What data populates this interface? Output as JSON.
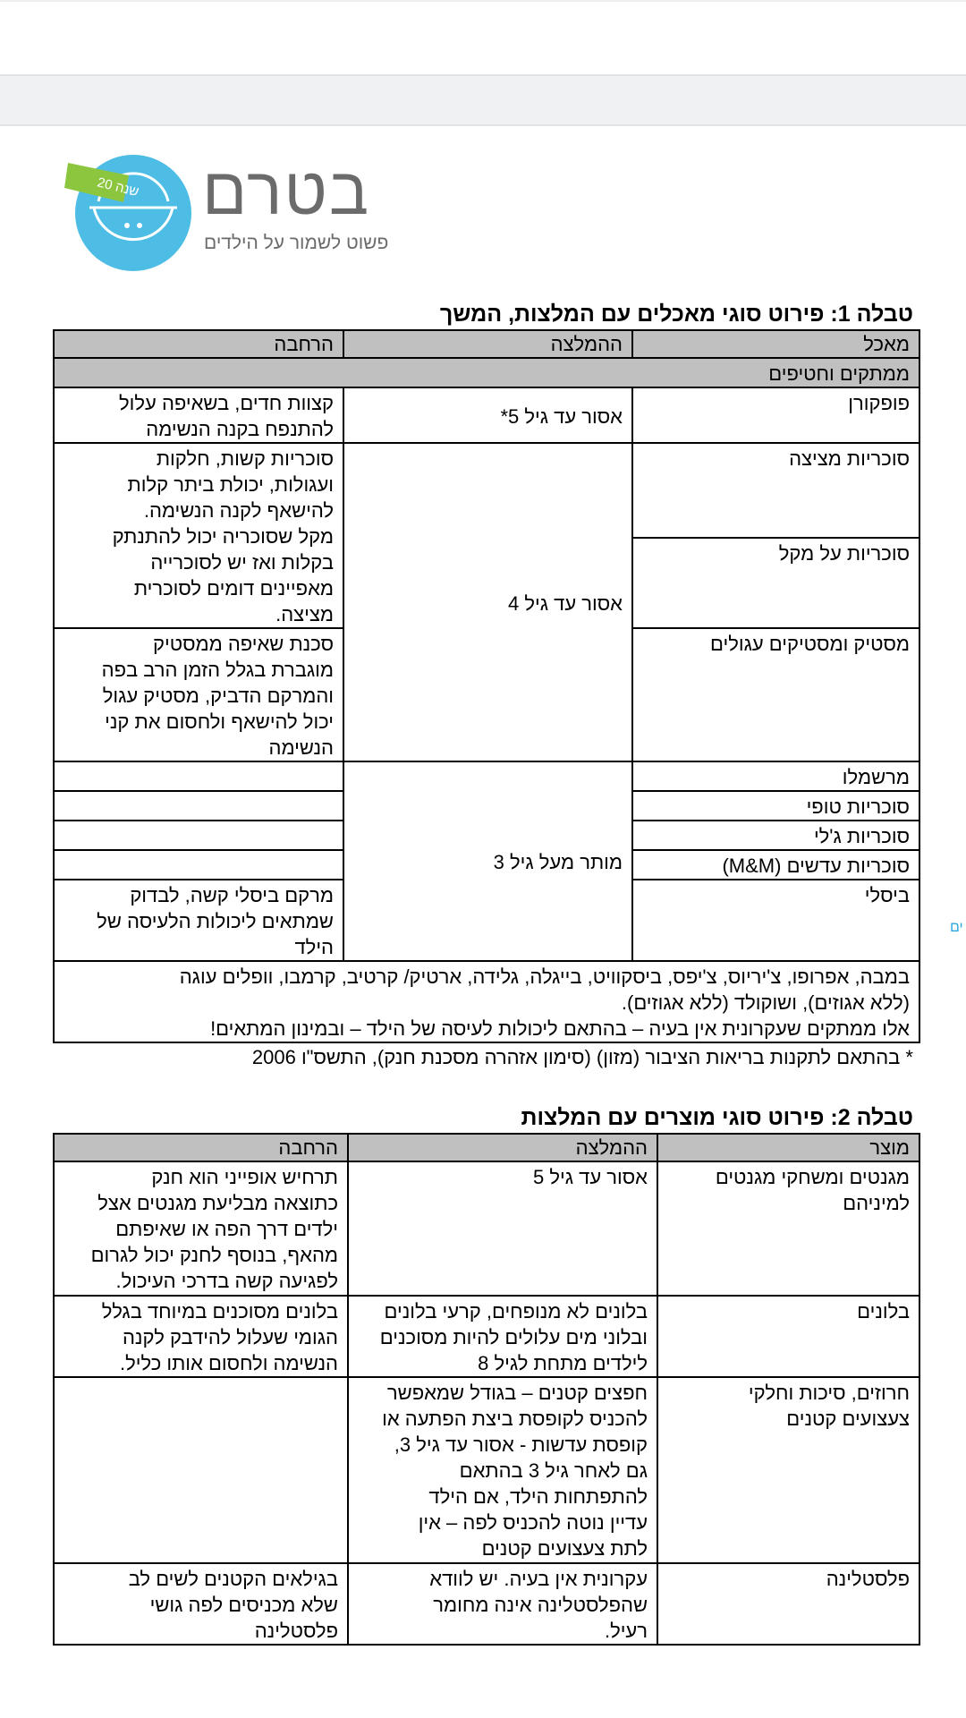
{
  "logo": {
    "brand": "בטרם",
    "tagline": "פשוט לשמור על הילדים",
    "badge": "20 שנה",
    "colors": {
      "circle": "#4dbde6",
      "ribbon": "#8cc63f",
      "text": "#6b6b6b"
    }
  },
  "table1": {
    "title": "טבלה 1: פירוט סוגי מאכלים עם המלצות, המשך",
    "headers": [
      "מאכל",
      "ההמלצה",
      "הרחבה"
    ],
    "section": "ממתקים וחטיפים",
    "rows": {
      "popcorn": {
        "food": "פופקורן",
        "rec": "אסור עד גיל 5*",
        "note": "קצוות חדים, בשאיפה עלול\nלהתנפח בקנה הנשימה"
      },
      "suction": {
        "food": "סוכריות מציצה"
      },
      "stick": {
        "food": "סוכריות על מקל"
      },
      "hard_note": "סוכריות קשות, חלקות\nועגולות, יכולת ביתר קלות\nלהישאף לקנה הנשימה.\nמקל שסוכריה יכול להתנתק\nבקלות ואז יש לסוכרייה\nמאפיינים דומים לסוכרית\nמציצה.",
      "rec4": "אסור עד גיל 4",
      "gum": {
        "food": "מסטיק ומסטיקים עגולים",
        "note": "סכנת שאיפה ממסטיק\nמוגברת בגלל הזמן הרב בפה\nוהמרקם הדביק, מסטיק עגול\nיכול להישאף ולחסום את קני\nהנשימה"
      },
      "rec3": "מותר מעל גיל 3",
      "marsh": "מרשמלו",
      "toffee": "סוכריות טופי",
      "jelly": "סוכריות ג'לי",
      "mm": "סוכריות עדשים (M&M)",
      "bisli": {
        "food": "ביסלי",
        "note": "מרקם ביסלי קשה, לבדוק\nשמתאים ליכולות הלעיסה של\nהילד"
      }
    },
    "summary": "במבה, אפרופו, צ'יריוס, צ'יפס, ביסקוויט, בייגלה, גלידה, ארטיק/ קרטיב, קרמבו, וופלים עוגה\n(ללא אגוזים), ושוקולד (ללא אגוזים).\nאלו ממתקים שעקרונית אין בעיה – בהתאם ליכולות לעיסה של הילד – ובמינון המתאים!",
    "footnote": "* בהתאם לתקנות בריאות הציבור (מזון) (סימון אזהרה מסכנת חנק), התשס\"ו 2006"
  },
  "table2": {
    "title": "טבלה 2: פירוט סוגי מוצרים עם המלצות",
    "headers": [
      "מוצר",
      "ההמלצה",
      "הרחבה"
    ],
    "rows": [
      {
        "product": "מגנטים ומשחקי מגנטים\nלמיניהם",
        "rec": "אסור עד גיל 5",
        "note": "תרחיש אופייני הוא חנק\nכתוצאה מבליעת מגנטים אצל\nילדים דרך הפה או שאיפתם\nמהאף, בנוסף לחנק יכול לגרום\nלפגיעה קשה בדרכי העיכול."
      },
      {
        "product": "בלונים",
        "rec": "בלונים לא מנופחים, קרעי בלונים\nובלוני מים עלולים להיות מסוכנים\nלילדים מתחת לגיל 8",
        "note": "בלונים מסוכנים במיוחד בגלל\nהגומי שעלול להידבק לקנה\nהנשימה ולחסום אותו כליל."
      },
      {
        "product": "חרוזים, סיכות וחלקי\nצעצועים קטנים",
        "rec": "חפצים קטנים – בגודל שמאפשר\nלהכניס לקופסת ביצת הפתעה או\nקופסת עדשות - אסור עד גיל 3,\nגם לאחר גיל 3 בהתאם\nלהתפתחות הילד, אם הילד\nעדיין נוטה להכניס לפה – אין\nלתת צעצועים קטנים",
        "note": ""
      },
      {
        "product": "פלסטלינה",
        "rec": "עקרונית אין בעיה. יש לוודא\nשהפלסטלינה אינה מחומר\nרעיל.",
        "note": "בגילאים הקטנים לשים לב\nשלא מכניסים לפה גושי\nפלסטלינה"
      }
    ]
  },
  "edge_fragment": "ים"
}
